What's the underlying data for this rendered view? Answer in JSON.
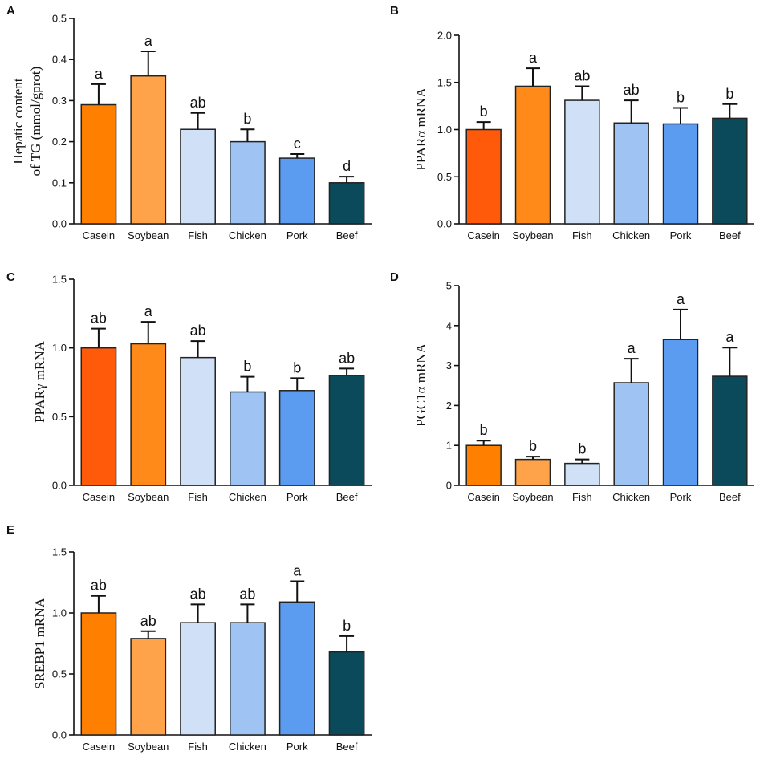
{
  "chart_data": [
    {
      "type": "bar",
      "panel": "A",
      "categories": [
        "Casein",
        "Soybean",
        "Fish",
        "Chicken",
        "Pork",
        "Beef"
      ],
      "values": [
        0.29,
        0.36,
        0.23,
        0.2,
        0.16,
        0.1
      ],
      "errors": [
        0.05,
        0.06,
        0.04,
        0.03,
        0.01,
        0.015
      ],
      "significance": [
        "a",
        "a",
        "ab",
        "b",
        "c",
        "d"
      ],
      "ylabel_lines": [
        "Hepatic content",
        "of TG (mmol/gprot)"
      ],
      "ylim": [
        0,
        0.5
      ],
      "yticks": [
        "0.0",
        "0.1",
        "0.2",
        "0.3",
        "0.4",
        "0.5"
      ],
      "colors": [
        "#ff7f00",
        "#ffa34a",
        "#cfe0f7",
        "#9fc4f4",
        "#5b9cf0",
        "#0b4a5a"
      ]
    },
    {
      "type": "bar",
      "panel": "B",
      "categories": [
        "Casein",
        "Soybean",
        "Fish",
        "Chicken",
        "Pork",
        "Beef"
      ],
      "values": [
        1.0,
        1.46,
        1.31,
        1.07,
        1.06,
        1.12
      ],
      "errors": [
        0.08,
        0.19,
        0.15,
        0.24,
        0.17,
        0.15
      ],
      "significance": [
        "b",
        "a",
        "ab",
        "ab",
        "b",
        "b"
      ],
      "ylabel_lines": [
        "PPARα mRNA"
      ],
      "ylim": [
        0,
        2.0
      ],
      "yticks": [
        "0.0",
        "0.5",
        "1.0",
        "1.5",
        "2.0"
      ],
      "colors": [
        "#ff5a0a",
        "#ff8a1a",
        "#cfe0f7",
        "#9fc4f4",
        "#5b9cf0",
        "#0b4a5a"
      ]
    },
    {
      "type": "bar",
      "panel": "C",
      "categories": [
        "Casein",
        "Soybean",
        "Fish",
        "Chicken",
        "Pork",
        "Beef"
      ],
      "values": [
        1.0,
        1.03,
        0.93,
        0.68,
        0.69,
        0.8
      ],
      "errors": [
        0.14,
        0.16,
        0.12,
        0.11,
        0.09,
        0.05
      ],
      "significance": [
        "ab",
        "a",
        "ab",
        "b",
        "b",
        "ab"
      ],
      "ylabel_lines": [
        "PPARγ mRNA"
      ],
      "ylim": [
        0,
        1.5
      ],
      "yticks": [
        "0.0",
        "0.5",
        "1.0",
        "1.5"
      ],
      "colors": [
        "#ff5a0a",
        "#ff8a1a",
        "#cfe0f7",
        "#9fc4f4",
        "#5b9cf0",
        "#0b4a5a"
      ]
    },
    {
      "type": "bar",
      "panel": "D",
      "categories": [
        "Casein",
        "Soybean",
        "Fish",
        "Chicken",
        "Pork",
        "Beef"
      ],
      "values": [
        1.0,
        0.65,
        0.55,
        2.57,
        3.65,
        2.73
      ],
      "errors": [
        0.12,
        0.07,
        0.1,
        0.6,
        0.75,
        0.72
      ],
      "significance": [
        "b",
        "b",
        "b",
        "a",
        "a",
        "a"
      ],
      "ylabel_lines": [
        "PGC1α mRNA"
      ],
      "ylim": [
        0,
        5
      ],
      "yticks": [
        "0",
        "1",
        "2",
        "3",
        "4",
        "5"
      ],
      "colors": [
        "#ff7f00",
        "#ffa34a",
        "#cfe0f7",
        "#9fc4f4",
        "#5b9cf0",
        "#0b4a5a"
      ]
    },
    {
      "type": "bar",
      "panel": "E",
      "categories": [
        "Casein",
        "Soybean",
        "Fish",
        "Chicken",
        "Pork",
        "Beef"
      ],
      "values": [
        1.0,
        0.79,
        0.92,
        0.92,
        1.09,
        0.68
      ],
      "errors": [
        0.14,
        0.06,
        0.15,
        0.15,
        0.17,
        0.13
      ],
      "significance": [
        "ab",
        "ab",
        "ab",
        "ab",
        "a",
        "b"
      ],
      "ylabel_lines": [
        "SREBP1 mRNA"
      ],
      "ylim": [
        0,
        1.5
      ],
      "yticks": [
        "0.0",
        "0.5",
        "1.0",
        "1.5"
      ],
      "colors": [
        "#ff7f00",
        "#ffa34a",
        "#cfe0f7",
        "#9fc4f4",
        "#5b9cf0",
        "#0b4a5a"
      ]
    }
  ]
}
